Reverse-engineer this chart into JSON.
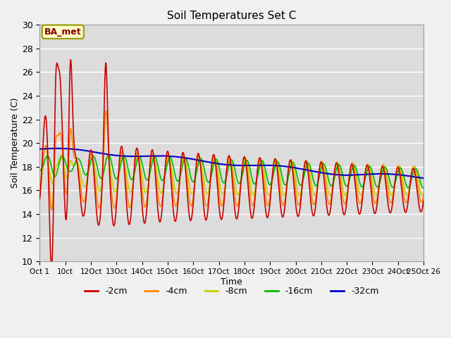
{
  "title": "Soil Temperatures Set C",
  "xlabel": "Time",
  "ylabel": "Soil Temperature (C)",
  "ylim": [
    10,
    30
  ],
  "yticks": [
    10,
    12,
    14,
    16,
    18,
    20,
    22,
    24,
    26,
    28,
    30
  ],
  "xtick_labels": [
    "Oct 1",
    "10ct",
    "12Oct",
    "13Oct",
    "14Oct",
    "15Oct",
    "16Oct",
    "17Oct",
    "18Oct",
    "19Oct",
    "20Oct",
    "21Oct",
    "22Oct",
    "23Oct",
    "24Oct",
    "25Oct 26"
  ],
  "annotation_text": "BA_met",
  "colors": {
    "-2cm": "#cc0000",
    "-4cm": "#ff8800",
    "-8cm": "#cccc00",
    "-16cm": "#00bb00",
    "-32cm": "#0000cc"
  },
  "legend_labels": [
    "-2cm",
    "-4cm",
    "-8cm",
    "-16cm",
    "-32cm"
  ],
  "bg_color": "#dcdcdc",
  "fig_bg_color": "#f0f0f0"
}
